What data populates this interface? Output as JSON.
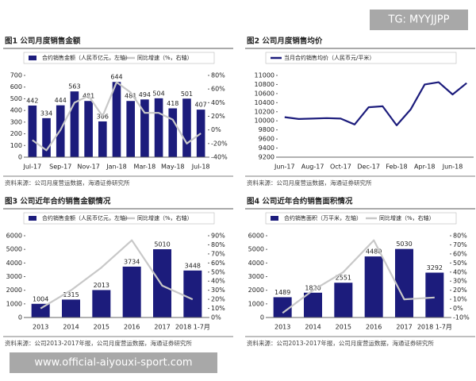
{
  "watermark": "TG: MYYJJPP",
  "footer": "www.official-aiyouxi-sport.com",
  "chart_data": [
    {
      "type": "combo",
      "title": "图1  公司月度销售金额",
      "source": "资料来源：公司月度营运数据，海通证券研究所",
      "categories": [
        "Jul-17",
        null,
        "Sep-17",
        null,
        "Nov-17",
        null,
        "Jan-18",
        null,
        "Mar-18",
        null,
        "May-18",
        null,
        "Jul-18"
      ],
      "series": [
        {
          "name": "合约销售金额（人民币亿元，左轴）",
          "type": "bar",
          "color": "#1c1c7c",
          "values": [
            442,
            334,
            444,
            563,
            481,
            306,
            644,
            481,
            494,
            504,
            418,
            501,
            407
          ]
        },
        {
          "name": "同比增速（%，右轴）",
          "type": "line",
          "axis": "y2",
          "color": "#c8c8c8",
          "values": [
            -15,
            -30,
            0,
            40,
            50,
            20,
            70,
            55,
            25,
            25,
            15,
            -20,
            -5
          ]
        }
      ],
      "ylim": [
        0,
        700
      ],
      "yticks": [
        0,
        100,
        200,
        300,
        400,
        500,
        600,
        700
      ],
      "y2lim": [
        -40,
        80
      ],
      "y2ticks": [
        {
          "value": -40,
          "label": "-40%"
        },
        {
          "value": -20,
          "label": "-20%"
        },
        {
          "value": 0,
          "label": "0%"
        },
        {
          "value": 20,
          "label": "20%"
        },
        {
          "value": 40,
          "label": "40%"
        },
        {
          "value": 60,
          "label": "60%"
        },
        {
          "value": 80,
          "label": "80%"
        }
      ]
    },
    {
      "type": "line",
      "title": "图2  公司月度销售均价",
      "source": "资料来源：公司月度营运数据，海通证券研究所",
      "categories": [
        "Jun-17",
        null,
        "Aug-17",
        null,
        "Oct-17",
        null,
        "Dec-17",
        null,
        "Feb-18",
        null,
        "Apr-18",
        null,
        "Jun-18",
        null
      ],
      "series": [
        {
          "name": "当月合约销售均价（人民币元/平米）",
          "type": "line",
          "color": "#1c1c7c",
          "values": [
            10080,
            10040,
            10050,
            10060,
            10050,
            9920,
            10300,
            10320,
            9900,
            10250,
            10800,
            10850,
            10580,
            10830
          ]
        }
      ],
      "ylim": [
        9200,
        11000
      ],
      "yticks": [
        9200,
        9400,
        9600,
        9800,
        10000,
        10200,
        10400,
        10600,
        10800,
        11000
      ]
    },
    {
      "type": "combo",
      "title": "图3  公司近年合约销售金额情况",
      "source": "资料来源：公司2013-2017年报，公司月度营运数据，海通证券研究所",
      "categories": [
        "2013",
        "2014",
        "2015",
        "2016",
        "2017",
        "2018 1-7月"
      ],
      "series": [
        {
          "name": "合约销售金额（人民币亿元，左轴）",
          "type": "bar",
          "color": "#1c1c7c",
          "values": [
            1004,
            1315,
            2013,
            3734,
            5010,
            3448
          ]
        },
        {
          "name": "同比增速（%，右轴）",
          "type": "line",
          "axis": "y2",
          "color": "#c8c8c8",
          "values": [
            10,
            30,
            55,
            85,
            35,
            20
          ]
        }
      ],
      "ylim": [
        0,
        6000
      ],
      "yticks": [
        0,
        1000,
        2000,
        3000,
        4000,
        5000,
        6000
      ],
      "y2lim": [
        0,
        90
      ],
      "y2ticks": [
        {
          "value": 0,
          "label": "0%"
        },
        {
          "value": 10,
          "label": "10%"
        },
        {
          "value": 20,
          "label": "20%"
        },
        {
          "value": 30,
          "label": "30%"
        },
        {
          "value": 40,
          "label": "40%"
        },
        {
          "value": 50,
          "label": "50%"
        },
        {
          "value": 60,
          "label": "60%"
        },
        {
          "value": 70,
          "label": "70%"
        },
        {
          "value": 80,
          "label": "80%"
        },
        {
          "value": 90,
          "label": "90%"
        }
      ]
    },
    {
      "type": "combo",
      "title": "图4  公司近年合约销售面积情况",
      "source": "资料来源：公司2013-2017年报，公司月度营运数据，海通证券研究所",
      "categories": [
        "2013",
        "2014",
        "2015",
        "2016",
        "2017",
        "2018 1-7月"
      ],
      "series": [
        {
          "name": "合约销售面积（万平米，左轴）",
          "type": "bar",
          "color": "#1c1c7c",
          "values": [
            1489,
            1820,
            2551,
            4480,
            5030,
            3292
          ]
        },
        {
          "name": "同比增速（%，右轴）",
          "type": "line",
          "axis": "y2",
          "color": "#c8c8c8",
          "values": [
            -5,
            20,
            40,
            75,
            10,
            12
          ]
        }
      ],
      "ylim": [
        0,
        6000
      ],
      "yticks": [
        0,
        1000,
        2000,
        3000,
        4000,
        5000,
        6000
      ],
      "y2lim": [
        -10,
        80
      ],
      "y2ticks": [
        {
          "value": -10,
          "label": "-10%"
        },
        {
          "value": 0,
          "label": "0%"
        },
        {
          "value": 10,
          "label": "10%"
        },
        {
          "value": 20,
          "label": "20%"
        },
        {
          "value": 30,
          "label": "30%"
        },
        {
          "value": 40,
          "label": "40%"
        },
        {
          "value": 50,
          "label": "50%"
        },
        {
          "value": 60,
          "label": "60%"
        },
        {
          "value": 70,
          "label": "70%"
        },
        {
          "value": 80,
          "label": "80%"
        }
      ]
    }
  ]
}
